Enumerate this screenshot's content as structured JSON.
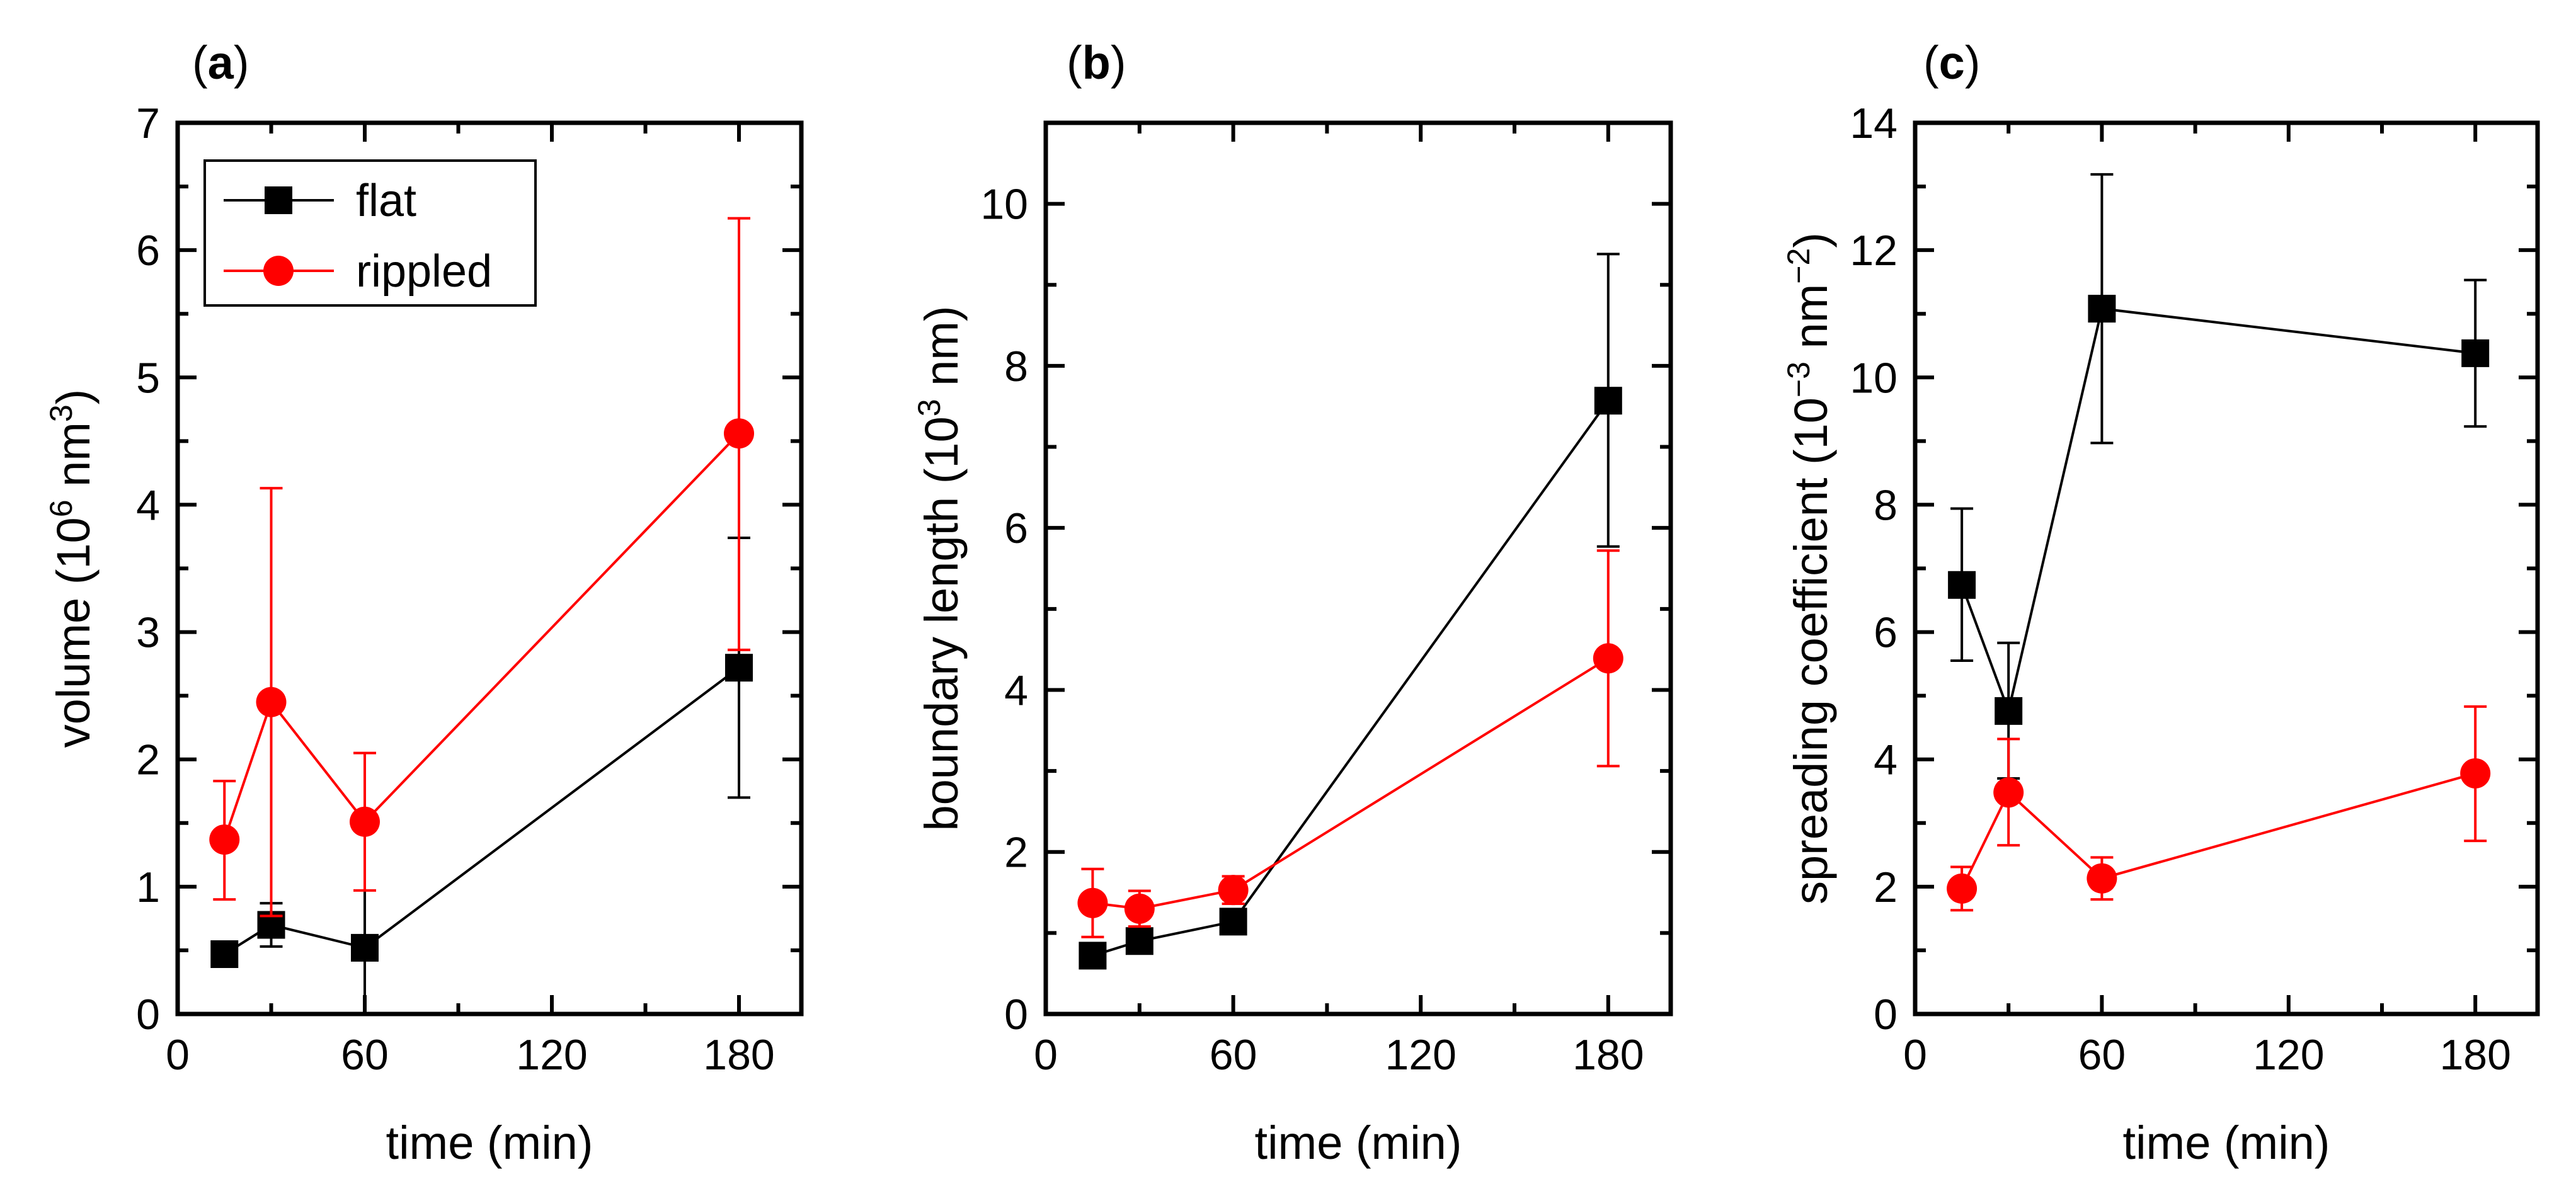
{
  "colors": {
    "flat": "#000000",
    "rippled": "#ff0000",
    "axis": "#000000",
    "background": "#ffffff"
  },
  "legend": {
    "placement": "top-left (panel a)",
    "entries": [
      {
        "label": "flat",
        "marker": "square",
        "color": "#000000"
      },
      {
        "label": "rippled",
        "marker": "circle",
        "color": "#ff0000"
      }
    ]
  },
  "chart_data": [
    {
      "panel_label": "a",
      "type": "line",
      "xlabel": "time (min)",
      "ylabel": "volume (10^6 nm^3)",
      "ylabel_parts": {
        "pre": "volume (10",
        "sup1": "6",
        "mid": " nm",
        "sup2": "3",
        "post": ")"
      },
      "xlim": [
        0,
        200
      ],
      "ylim": [
        0,
        7
      ],
      "xticks": [
        0,
        60,
        120,
        180
      ],
      "yticks": [
        0,
        1,
        2,
        3,
        4,
        5,
        6,
        7
      ],
      "grid": false,
      "series": [
        {
          "name": "flat",
          "marker": "square",
          "color": "#000000",
          "points": [
            {
              "x": 15,
              "y": 0.47,
              "err_low": 0.4,
              "err_high": 0.55
            },
            {
              "x": 30,
              "y": 0.7,
              "err_low": 0.53,
              "err_high": 0.87
            },
            {
              "x": 60,
              "y": 0.52,
              "err_low": 0.0,
              "err_high": 1.44
            },
            {
              "x": 180,
              "y": 2.72,
              "err_low": 1.7,
              "err_high": 3.74
            }
          ]
        },
        {
          "name": "rippled",
          "marker": "circle",
          "color": "#ff0000",
          "points": [
            {
              "x": 15,
              "y": 1.37,
              "err_low": 0.9,
              "err_high": 1.83
            },
            {
              "x": 30,
              "y": 2.45,
              "err_low": 0.77,
              "err_high": 4.13
            },
            {
              "x": 60,
              "y": 1.51,
              "err_low": 0.97,
              "err_high": 2.05
            },
            {
              "x": 180,
              "y": 4.56,
              "err_low": 2.86,
              "err_high": 6.25
            }
          ]
        }
      ]
    },
    {
      "panel_label": "b",
      "type": "line",
      "xlabel": "time (min)",
      "ylabel": "boundary length (10^3 nm)",
      "ylabel_parts": {
        "pre": "boundary length (10",
        "sup1": "3",
        "mid": " nm)",
        "sup2": "",
        "post": ""
      },
      "xlim": [
        0,
        200
      ],
      "ylim": [
        0,
        11
      ],
      "xticks": [
        0,
        60,
        120,
        180
      ],
      "yticks": [
        0,
        2,
        4,
        6,
        8,
        10
      ],
      "grid": false,
      "series": [
        {
          "name": "flat",
          "marker": "square",
          "color": "#000000",
          "points": [
            {
              "x": 15,
              "y": 0.72,
              "err_low": 0.6,
              "err_high": 0.84
            },
            {
              "x": 30,
              "y": 0.9,
              "err_low": 0.78,
              "err_high": 1.02
            },
            {
              "x": 60,
              "y": 1.14,
              "err_low": 1.04,
              "err_high": 1.24
            },
            {
              "x": 180,
              "y": 7.57,
              "err_low": 5.77,
              "err_high": 9.38
            }
          ]
        },
        {
          "name": "rippled",
          "marker": "circle",
          "color": "#ff0000",
          "points": [
            {
              "x": 15,
              "y": 1.37,
              "err_low": 0.95,
              "err_high": 1.79
            },
            {
              "x": 30,
              "y": 1.3,
              "err_low": 1.08,
              "err_high": 1.52
            },
            {
              "x": 60,
              "y": 1.53,
              "err_low": 1.36,
              "err_high": 1.7
            },
            {
              "x": 180,
              "y": 4.39,
              "err_low": 3.06,
              "err_high": 5.72
            }
          ]
        }
      ]
    },
    {
      "panel_label": "c",
      "type": "line",
      "xlabel": "time (min)",
      "ylabel": "spreading coefficient (10^-3 nm^-2)",
      "ylabel_parts": {
        "pre": "spreading coefficient (10",
        "sup1": "−3",
        "mid": " nm",
        "sup2": "−2",
        "post": ")"
      },
      "xlim": [
        0,
        200
      ],
      "ylim": [
        0,
        14
      ],
      "xticks": [
        0,
        60,
        120,
        180
      ],
      "yticks": [
        0,
        2,
        4,
        6,
        8,
        10,
        12,
        14
      ],
      "grid": false,
      "series": [
        {
          "name": "flat",
          "marker": "square",
          "color": "#000000",
          "points": [
            {
              "x": 15,
              "y": 6.74,
              "err_low": 5.55,
              "err_high": 7.94
            },
            {
              "x": 30,
              "y": 4.76,
              "err_low": 3.7,
              "err_high": 5.83
            },
            {
              "x": 60,
              "y": 11.08,
              "err_low": 8.97,
              "err_high": 13.19
            },
            {
              "x": 180,
              "y": 10.38,
              "err_low": 9.23,
              "err_high": 11.53
            }
          ]
        },
        {
          "name": "rippled",
          "marker": "circle",
          "color": "#ff0000",
          "points": [
            {
              "x": 15,
              "y": 1.97,
              "err_low": 1.63,
              "err_high": 2.31
            },
            {
              "x": 30,
              "y": 3.48,
              "err_low": 2.65,
              "err_high": 4.32
            },
            {
              "x": 60,
              "y": 2.13,
              "err_low": 1.8,
              "err_high": 2.46
            },
            {
              "x": 180,
              "y": 3.78,
              "err_low": 2.72,
              "err_high": 4.83
            }
          ]
        }
      ]
    }
  ]
}
